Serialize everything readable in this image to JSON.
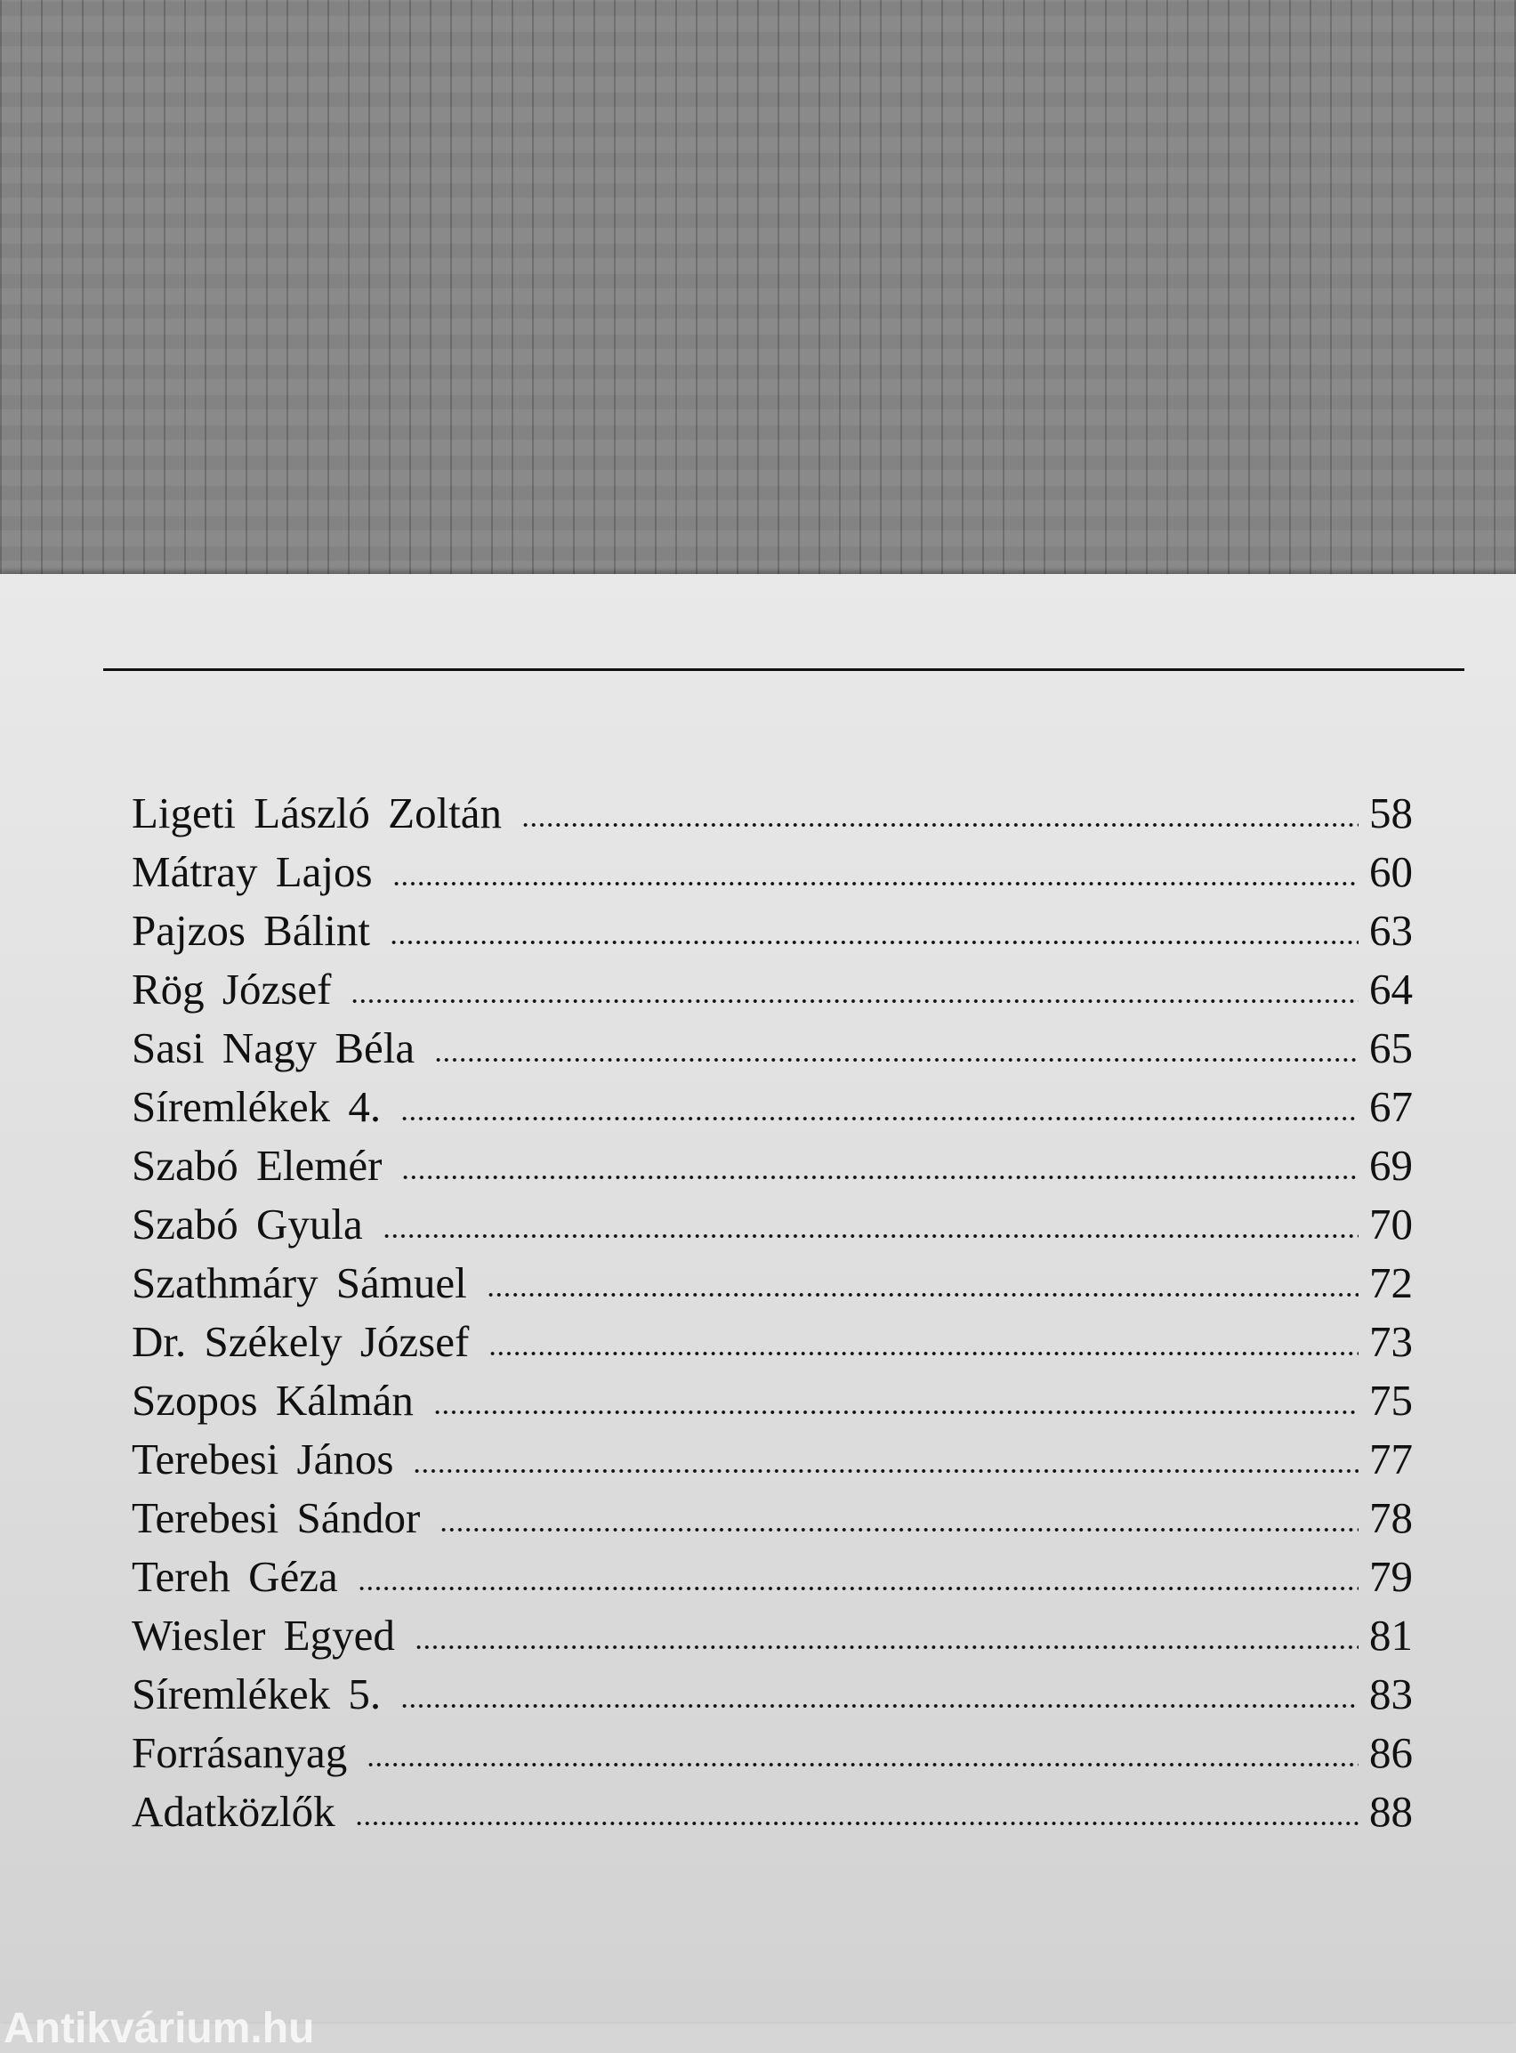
{
  "toc": {
    "entries": [
      {
        "title": "Ligeti László Zoltán",
        "page": "58"
      },
      {
        "title": "Mátray Lajos",
        "page": "60"
      },
      {
        "title": "Pajzos Bálint",
        "page": "63"
      },
      {
        "title": "Rög József",
        "page": "64"
      },
      {
        "title": "Sasi Nagy Béla",
        "page": "65"
      },
      {
        "title": "Síremlékek 4.",
        "page": "67"
      },
      {
        "title": "Szabó Elemér",
        "page": "69"
      },
      {
        "title": "Szabó Gyula",
        "page": "70"
      },
      {
        "title": "Szathmáry Sámuel",
        "page": "72"
      },
      {
        "title": "Dr. Székely József",
        "page": "73"
      },
      {
        "title": "Szopos Kálmán",
        "page": "75"
      },
      {
        "title": "Terebesi János",
        "page": "77"
      },
      {
        "title": "Terebesi Sándor",
        "page": "78"
      },
      {
        "title": "Tereh Géza",
        "page": "79"
      },
      {
        "title": "Wiesler Egyed",
        "page": "81"
      },
      {
        "title": "Síremlékek 5.",
        "page": "83"
      },
      {
        "title": "Forrásanyag",
        "page": "86"
      },
      {
        "title": "Adatközlők",
        "page": "88"
      }
    ]
  },
  "watermark": "Antikvárium.hu"
}
